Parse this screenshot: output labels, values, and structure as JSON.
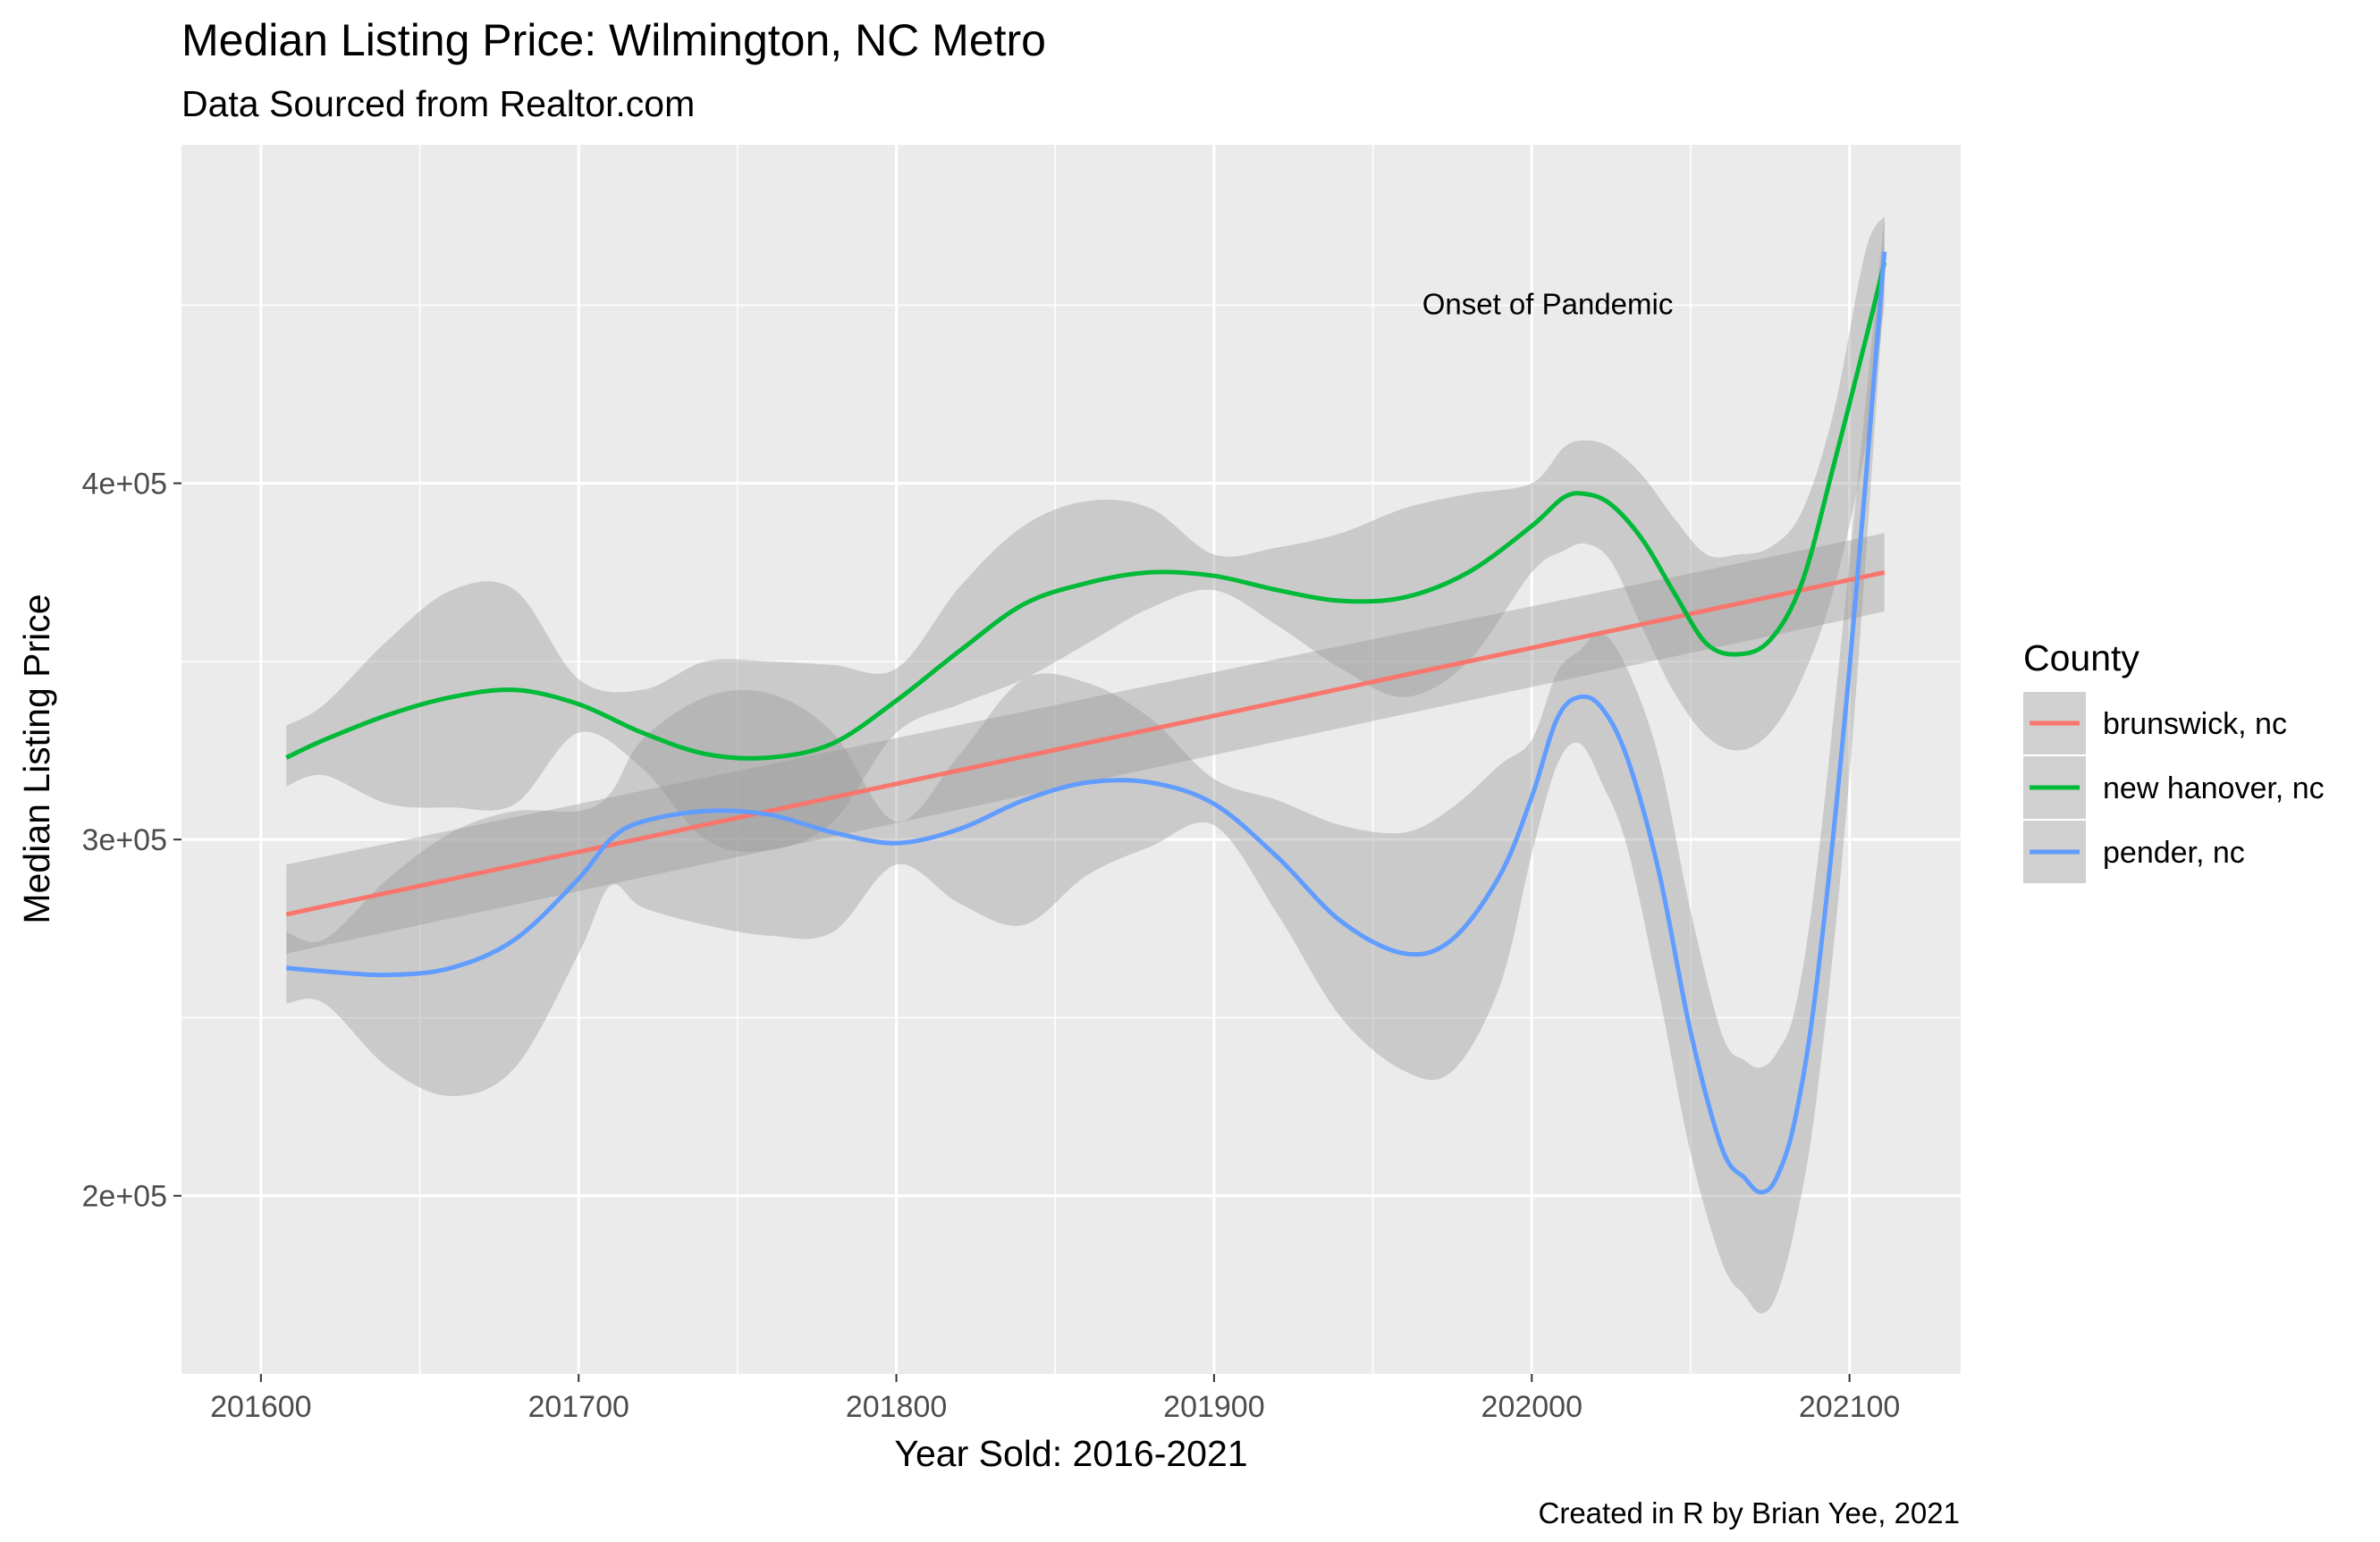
{
  "chart_data": {
    "type": "line",
    "title": "Median Listing Price: Wilmington, NC Metro",
    "subtitle": "Data Sourced from Realtor.com",
    "caption": "Created in R by Brian Yee, 2021",
    "xlabel": "Year Sold: 2016-2021",
    "ylabel": "Median Listing Price",
    "xlim": [
      201575,
      202135
    ],
    "ylim": [
      150000,
      495000
    ],
    "x_ticks": [
      201600,
      201700,
      201800,
      201900,
      202000,
      202100
    ],
    "x_tick_labels": [
      "201600",
      "201700",
      "201800",
      "201900",
      "202000",
      "202100"
    ],
    "y_ticks": [
      200000,
      300000,
      400000
    ],
    "y_tick_labels": [
      "2e+05",
      "3e+05",
      "4e+05"
    ],
    "grid": true,
    "legend_title": "County",
    "legend_position": "right",
    "annotations": [
      {
        "text": "Onset of Pandemic",
        "x": 202005,
        "y": 450000
      }
    ],
    "series": [
      {
        "name": "brunswick, nc",
        "color": "#F8766D",
        "x": [
          201608,
          202111
        ],
        "y": [
          279000,
          375000
        ],
        "ylow": [
          268000,
          364000
        ],
        "yhigh": [
          293000,
          386000
        ]
      },
      {
        "name": "new hanover, nc",
        "color": "#00BA38",
        "x": [
          201608,
          201620,
          201640,
          201660,
          201680,
          201700,
          201720,
          201740,
          201760,
          201780,
          201800,
          201820,
          201840,
          201860,
          201880,
          201900,
          201920,
          201940,
          201960,
          201980,
          202000,
          202010,
          202017,
          202025,
          202035,
          202045,
          202055,
          202065,
          202075,
          202085,
          202095,
          202105,
          202111
        ],
        "y": [
          323000,
          328000,
          335000,
          340000,
          342000,
          338000,
          330000,
          324000,
          323000,
          327000,
          339000,
          353000,
          366000,
          372000,
          375000,
          374000,
          370000,
          367000,
          368000,
          375000,
          388000,
          396000,
          397000,
          394000,
          384000,
          369000,
          355000,
          352000,
          356000,
          372000,
          405000,
          440000,
          462000
        ],
        "ylow": [
          315000,
          318000,
          310000,
          309000,
          310000,
          330000,
          320000,
          300000,
          297000,
          305000,
          330000,
          338000,
          345000,
          355000,
          365000,
          370000,
          360000,
          348000,
          340000,
          350000,
          375000,
          381000,
          383000,
          378000,
          359000,
          341000,
          329000,
          325000,
          330000,
          345000,
          370000,
          410000,
          450000
        ],
        "yhigh": [
          332000,
          338000,
          356000,
          370000,
          370000,
          345000,
          342000,
          350000,
          350000,
          349000,
          348000,
          371000,
          388000,
          395000,
          393000,
          380000,
          382000,
          386000,
          393000,
          397000,
          400000,
          410000,
          412000,
          410000,
          402000,
          390000,
          380000,
          380000,
          382000,
          392000,
          420000,
          465000,
          475000
        ]
      },
      {
        "name": "pender, nc",
        "color": "#619CFF",
        "x": [
          201608,
          201620,
          201640,
          201660,
          201680,
          201700,
          201710,
          201720,
          201740,
          201760,
          201780,
          201800,
          201820,
          201840,
          201860,
          201880,
          201900,
          201920,
          201940,
          201960,
          201975,
          201990,
          202000,
          202008,
          202015,
          202022,
          202030,
          202040,
          202050,
          202060,
          202067,
          202072,
          202077,
          202083,
          202090,
          202100,
          202111
        ],
        "y": [
          264000,
          263000,
          262000,
          264000,
          272000,
          289000,
          300000,
          305000,
          308000,
          307000,
          302000,
          299000,
          303000,
          311000,
          316000,
          316000,
          310000,
          295000,
          277000,
          268000,
          272000,
          290000,
          312000,
          334000,
          340000,
          337000,
          323000,
          291000,
          246000,
          213000,
          205000,
          201000,
          205000,
          222000,
          262000,
          348000,
          465000
        ],
        "ylow": [
          254000,
          254000,
          236000,
          228000,
          236000,
          268000,
          287000,
          281000,
          276000,
          273000,
          274000,
          293000,
          282000,
          276000,
          290000,
          298000,
          304000,
          279000,
          250000,
          235000,
          235000,
          259000,
          296000,
          321000,
          327000,
          316000,
          298000,
          257000,
          212000,
          181000,
          172000,
          167000,
          172000,
          192000,
          230000,
          318000,
          455000
        ],
        "yhigh": [
          274000,
          272000,
          289000,
          302000,
          308000,
          308000,
          313000,
          328000,
          340000,
          341000,
          330000,
          305000,
          324000,
          345000,
          344000,
          334000,
          317000,
          311000,
          304000,
          302000,
          309000,
          321000,
          328000,
          347000,
          353000,
          358000,
          348000,
          323000,
          280000,
          245000,
          238000,
          236000,
          240000,
          253000,
          294000,
          378000,
          475000
        ]
      }
    ]
  }
}
